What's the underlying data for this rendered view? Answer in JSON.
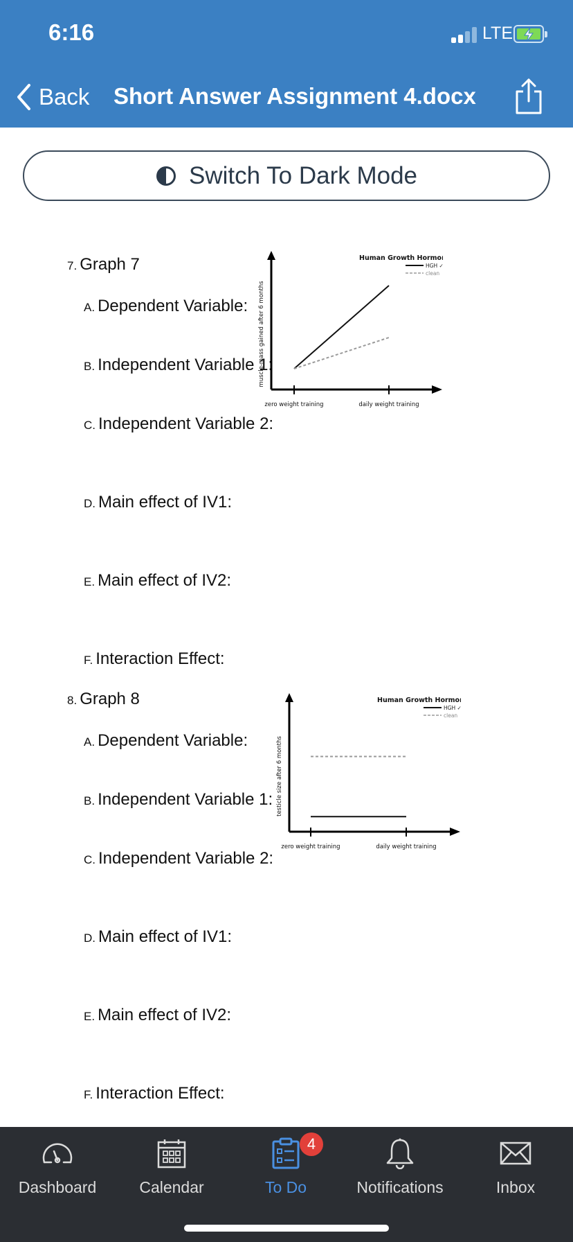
{
  "status_bar": {
    "time": "6:16",
    "network": "LTE"
  },
  "nav": {
    "back_label": "Back",
    "title": "Short Answer Assignment 4.docx"
  },
  "dark_mode_button": {
    "label": "Switch To Dark Mode"
  },
  "questions": [
    {
      "number": "7.",
      "title": "Graph 7",
      "items": [
        {
          "letter": "A.",
          "text": "Dependent Variable:"
        },
        {
          "letter": "B.",
          "text": "Independent Variable 1:"
        },
        {
          "letter": "C.",
          "text": "Independent Variable 2:"
        },
        {
          "letter": "D.",
          "text": "Main effect of IV1:"
        },
        {
          "letter": "E.",
          "text": "Main effect of IV2:"
        },
        {
          "letter": "F.",
          "text": "Interaction Effect:"
        }
      ]
    },
    {
      "number": "8.",
      "title": "Graph 8",
      "items": [
        {
          "letter": "A.",
          "text": "Dependent Variable:"
        },
        {
          "letter": "B.",
          "text": "Independent Variable 1:"
        },
        {
          "letter": "C.",
          "text": "Independent Variable 2:"
        },
        {
          "letter": "D.",
          "text": "Main effect of IV1:"
        },
        {
          "letter": "E.",
          "text": "Main effect of IV2:"
        },
        {
          "letter": "F.",
          "text": "Interaction Effect:"
        }
      ]
    }
  ],
  "graphs": [
    {
      "legend_title": "Human Growth Hormone",
      "ylabel": "muscle-mass gained after 6 months",
      "categories": [
        "zero weight training",
        "daily weight training"
      ],
      "series": [
        {
          "name": "HGH ✓✓",
          "style": "solid",
          "color": "#111111",
          "values": [
            1.0,
            5.0
          ]
        },
        {
          "name": "clean",
          "style": "dashed",
          "color": "#9a9a9a",
          "values": [
            1.0,
            2.5
          ]
        }
      ],
      "ylim": [
        0,
        6
      ]
    },
    {
      "legend_title": "Human Growth Hormone",
      "ylabel": "testicle size after 6 months",
      "categories": [
        "zero weight training",
        "daily weight training"
      ],
      "series": [
        {
          "name": "HGH ✓✓",
          "style": "solid",
          "color": "#111111",
          "values": [
            1.0,
            1.0
          ]
        },
        {
          "name": "clean",
          "style": "dashed",
          "color": "#9a9a9a",
          "values": [
            5.0,
            5.0
          ]
        }
      ],
      "ylim": [
        0,
        6
      ]
    }
  ],
  "tabbar": {
    "items": [
      {
        "label": "Dashboard",
        "icon": "dashboard-icon"
      },
      {
        "label": "Calendar",
        "icon": "calendar-icon"
      },
      {
        "label": "To Do",
        "icon": "todo-icon",
        "active": true
      },
      {
        "label": "Notifications",
        "icon": "bell-icon"
      },
      {
        "label": "Inbox",
        "icon": "inbox-icon"
      }
    ],
    "todo_badge": "4",
    "active_color": "#4a90e2"
  },
  "colors": {
    "header": "#3b80c3",
    "tabbar": "#2b2e33",
    "badge": "#e2403a"
  }
}
